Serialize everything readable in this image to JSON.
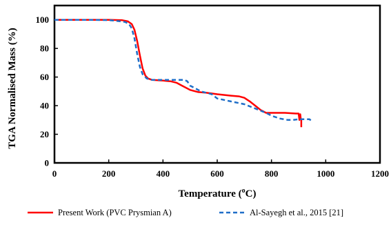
{
  "chart_data": {
    "type": "line",
    "title": "",
    "xlabel": "Temperature (°C)",
    "xlabel_parts": {
      "before": "Temperature (",
      "sup": "o",
      "after": "C)"
    },
    "ylabel": "TGA Normalised Mass (%)",
    "xlim": [
      0,
      1200
    ],
    "ylim": [
      0,
      110
    ],
    "xticks": [
      0,
      200,
      400,
      600,
      800,
      1000,
      1200
    ],
    "yticks": [
      0,
      20,
      40,
      60,
      80,
      100
    ],
    "grid": false,
    "legend_position": "bottom",
    "series": [
      {
        "name": "Present Work (PVC Prysmian A)",
        "color": "#ff0000",
        "style": "solid",
        "x": [
          0,
          100,
          200,
          250,
          270,
          285,
          295,
          305,
          315,
          325,
          335,
          345,
          360,
          400,
          430,
          450,
          470,
          500,
          530,
          560,
          600,
          650,
          680,
          700,
          720,
          740,
          760,
          780,
          800,
          850,
          890,
          900,
          903,
          906,
          908,
          910,
          910
        ],
        "y": [
          100,
          100,
          100,
          99.7,
          99,
          97,
          93,
          85,
          75,
          66,
          61,
          59,
          58,
          57.5,
          57,
          56,
          54,
          51,
          49.5,
          49,
          48,
          47,
          46.5,
          45.5,
          43,
          40,
          37,
          35,
          35,
          35,
          34.5,
          34.5,
          30,
          34,
          31,
          30,
          25
        ]
      },
      {
        "name": "Al-Sayegh et al., 2015 [21]",
        "color": "#1f6ec8",
        "style": "dashed",
        "x": [
          0,
          100,
          200,
          240,
          260,
          275,
          285,
          295,
          305,
          315,
          325,
          340,
          360,
          400,
          430,
          460,
          480,
          490,
          500,
          520,
          540,
          560,
          580,
          600,
          650,
          700,
          740,
          780,
          800,
          830,
          860,
          880,
          900,
          920,
          940,
          950
        ],
        "y": [
          100,
          100,
          99.8,
          99,
          98.5,
          97,
          94,
          87,
          76,
          67,
          62,
          59,
          58,
          58,
          58,
          58,
          58,
          57,
          54,
          52,
          50,
          49,
          48,
          45,
          43,
          41,
          38,
          35,
          33,
          31,
          30,
          30,
          30.5,
          30.5,
          30.5,
          29
        ]
      }
    ]
  }
}
